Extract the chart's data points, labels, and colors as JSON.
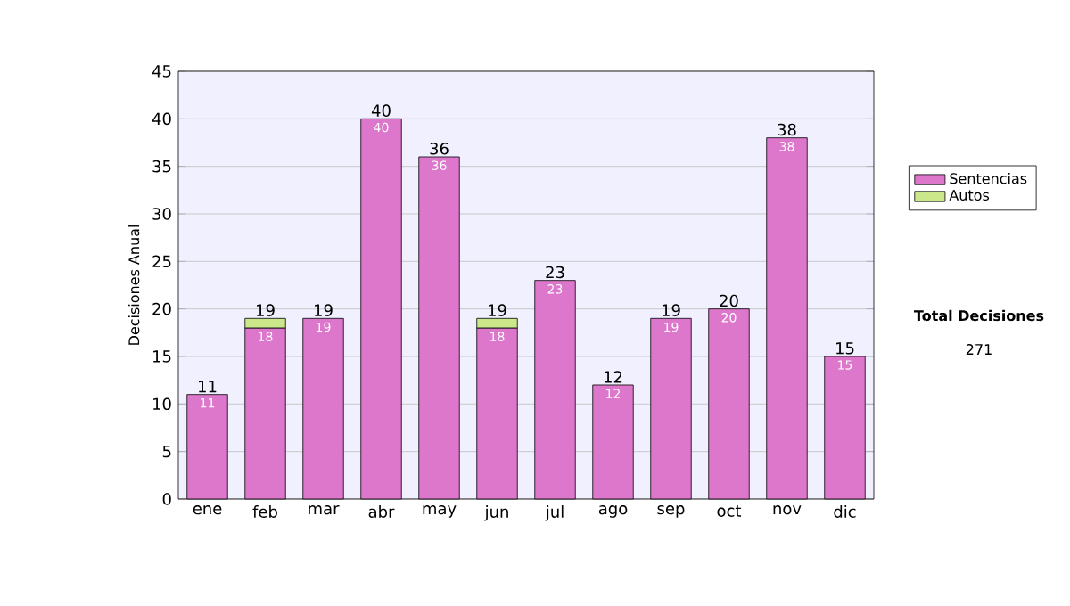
{
  "chart_data": {
    "type": "bar",
    "stacked": true,
    "ylabel": "Decisiones Anual",
    "categories": [
      "ene",
      "feb",
      "mar",
      "abr",
      "may",
      "jun",
      "jul",
      "ago",
      "sep",
      "oct",
      "nov",
      "dic"
    ],
    "series": [
      {
        "name": "Sentencias",
        "color": "#dd77cc",
        "values": [
          11,
          18,
          19,
          40,
          36,
          18,
          23,
          12,
          19,
          20,
          38,
          15
        ],
        "value_labels": [
          "11",
          "18",
          "19",
          "40",
          "36",
          "18",
          "23",
          "12",
          "19",
          "20",
          "38",
          "15"
        ]
      },
      {
        "name": "Autos",
        "color": "#cce68a",
        "values": [
          null,
          1,
          null,
          null,
          null,
          1,
          null,
          null,
          null,
          null,
          null,
          null
        ]
      }
    ],
    "totals": [
      "11",
      "19",
      "19",
      "40",
      "36",
      "19",
      "23",
      "12",
      "19",
      "20",
      "38",
      "15"
    ],
    "ylim": [
      0,
      45
    ],
    "yticks": [
      0,
      5,
      10,
      15,
      20,
      25,
      30,
      35,
      40,
      45
    ],
    "grid": "y",
    "legend": "right",
    "annotations": [
      "**Total Decisiones**",
      "271"
    ]
  }
}
